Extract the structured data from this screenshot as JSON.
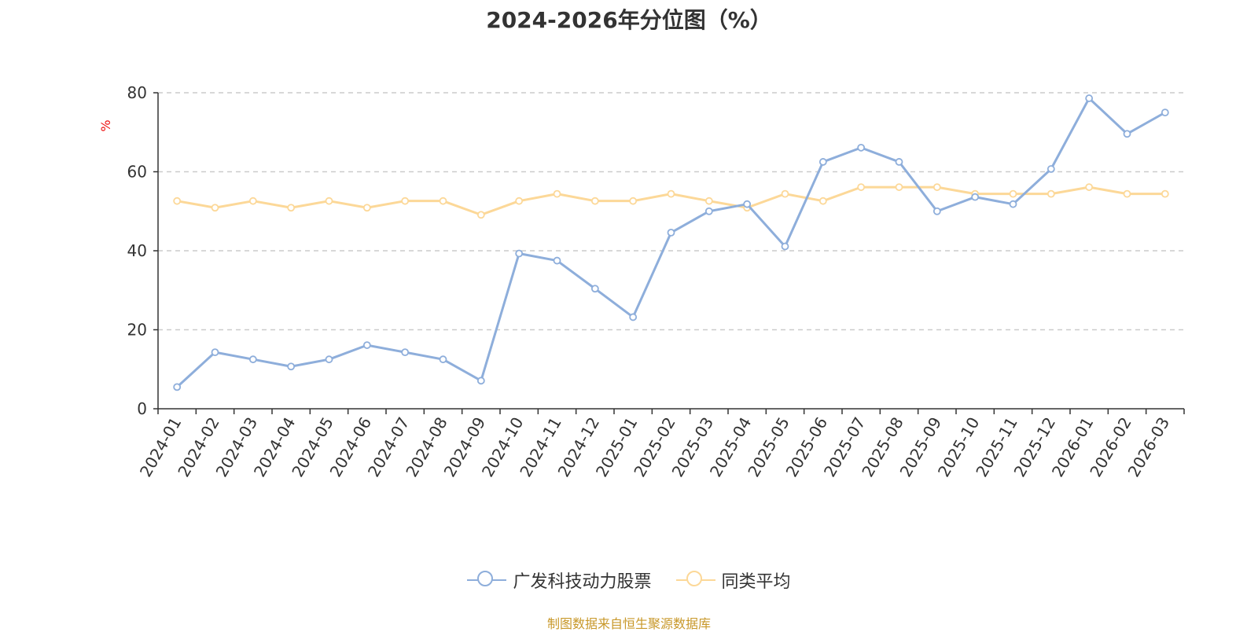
{
  "chart_data": {
    "type": "line",
    "title": "2024-2026年分位图（%）",
    "ylabel": "%",
    "ylim": [
      0,
      80
    ],
    "yticks": [
      0,
      20,
      40,
      60,
      80
    ],
    "grid": true,
    "legend_position": "bottom-center",
    "categories": [
      "2024-01",
      "2024-02",
      "2024-03",
      "2024-04",
      "2024-05",
      "2024-06",
      "2024-07",
      "2024-08",
      "2024-09",
      "2024-10",
      "2024-11",
      "2024-12",
      "2025-01",
      "2025-02",
      "2025-03",
      "2025-04",
      "2025-05",
      "2025-06",
      "2025-07",
      "2025-08",
      "2025-09",
      "2025-10",
      "2025-11",
      "2025-12",
      "2026-01",
      "2026-02",
      "2026-03"
    ],
    "series": [
      {
        "name": "广发科技动力股票",
        "color": "#8eaedb",
        "values": [
          5.5,
          14.3,
          12.5,
          10.7,
          12.5,
          16.1,
          14.3,
          12.5,
          7.1,
          39.3,
          37.5,
          30.4,
          23.2,
          44.6,
          50.0,
          51.8,
          41.1,
          62.5,
          66.1,
          62.5,
          50.0,
          53.6,
          51.8,
          60.7,
          78.6,
          69.6,
          75.0
        ]
      },
      {
        "name": "同类平均",
        "color": "#fcd898",
        "values": [
          52.6,
          50.9,
          52.6,
          50.9,
          52.6,
          50.9,
          52.6,
          52.6,
          49.1,
          52.6,
          54.4,
          52.6,
          52.6,
          54.4,
          52.6,
          50.9,
          54.4,
          52.6,
          56.1,
          56.1,
          56.1,
          54.4,
          54.4,
          54.4,
          56.1,
          54.4,
          54.4
        ]
      }
    ]
  },
  "source_text": "制图数据来自恒生聚源数据库"
}
